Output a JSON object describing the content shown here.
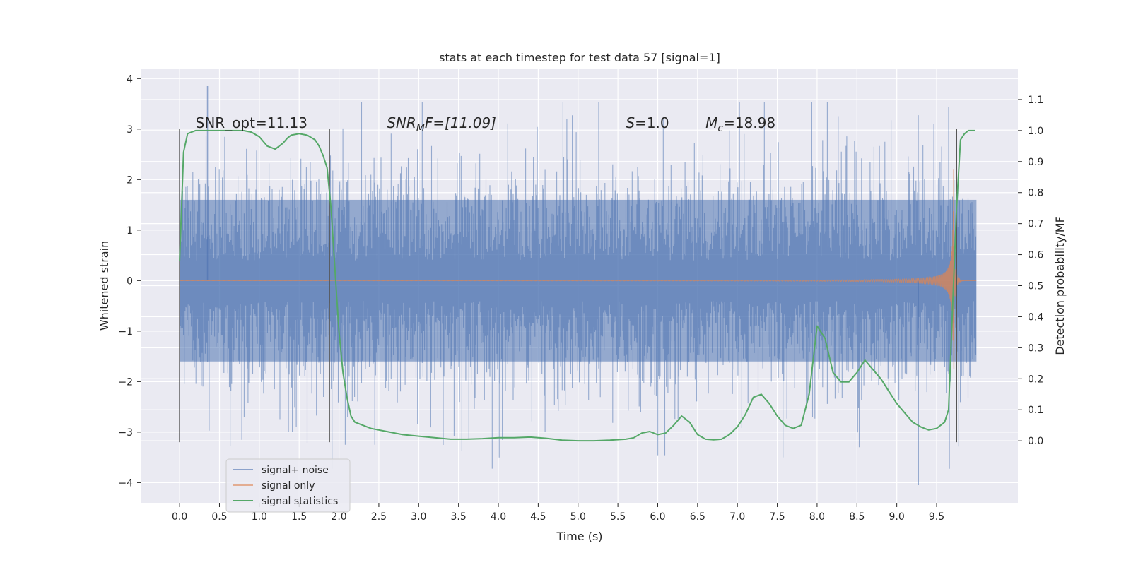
{
  "chart_data": {
    "type": "line",
    "title": "stats at each timestep for test data 57 [signal=1]",
    "xlabel": "Time (s)",
    "ylabel": "Whitened strain",
    "ylabel_right": "Detection probability/MF",
    "xlim": [
      -0.48,
      10.52
    ],
    "ylim": [
      -4.4,
      4.2
    ],
    "ylim_right": [
      -0.2,
      1.2
    ],
    "x_ticks": [
      "0.0",
      "0.5",
      "1.0",
      "1.5",
      "2.0",
      "2.5",
      "3.0",
      "3.5",
      "4.0",
      "4.5",
      "5.0",
      "5.5",
      "6.0",
      "6.5",
      "7.0",
      "7.5",
      "8.0",
      "8.5",
      "9.0",
      "9.5"
    ],
    "x_tick_values": [
      0.0,
      0.5,
      1.0,
      1.5,
      2.0,
      2.5,
      3.0,
      3.5,
      4.0,
      4.5,
      5.0,
      5.5,
      6.0,
      6.5,
      7.0,
      7.5,
      8.0,
      8.5,
      9.0,
      9.5
    ],
    "y_ticks": [
      "−4",
      "−3",
      "−2",
      "−1",
      "0",
      "1",
      "2",
      "3",
      "4"
    ],
    "y_tick_values": [
      -4,
      -3,
      -2,
      -1,
      0,
      1,
      2,
      3,
      4
    ],
    "y_ticks_right": [
      "0.0",
      "0.1",
      "0.2",
      "0.3",
      "0.4",
      "0.5",
      "0.6",
      "0.7",
      "0.8",
      "0.9",
      "1.0",
      "1.1"
    ],
    "y_tick_values_right": [
      0.0,
      0.1,
      0.2,
      0.3,
      0.4,
      0.5,
      0.6,
      0.7,
      0.8,
      0.9,
      1.0,
      1.1
    ],
    "grid": true,
    "legend_position": "lower-left",
    "colors": {
      "background": "#eaeaf2",
      "signal_noise": "#4c72b0",
      "signal_only": "#dd8452",
      "statistics": "#55a868",
      "vline": "#555555"
    },
    "series": [
      {
        "name": "signal+ noise",
        "axis": "left",
        "kind": "noise",
        "x_range": [
          0.0,
          10.0
        ],
        "core_std": 1.0,
        "max_value": 3.85,
        "min_value": -4.05
      },
      {
        "name": "signal only",
        "axis": "left",
        "kind": "chirp",
        "x_range": [
          0.0,
          10.0
        ],
        "merger_time": 9.72,
        "peak_amplitude": 2.2
      },
      {
        "name": "signal statistics",
        "axis": "right",
        "kind": "line",
        "x": [
          0.0,
          0.05,
          0.1,
          0.15,
          0.2,
          0.3,
          0.4,
          0.5,
          0.6,
          0.7,
          0.8,
          0.9,
          1.0,
          1.1,
          1.2,
          1.3,
          1.35,
          1.4,
          1.5,
          1.6,
          1.7,
          1.75,
          1.8,
          1.85,
          1.9,
          1.95,
          2.0,
          2.05,
          2.1,
          2.15,
          2.2,
          2.3,
          2.4,
          2.5,
          2.6,
          2.8,
          3.0,
          3.2,
          3.4,
          3.6,
          3.8,
          4.0,
          4.2,
          4.4,
          4.6,
          4.8,
          5.0,
          5.2,
          5.4,
          5.6,
          5.7,
          5.8,
          5.9,
          6.0,
          6.1,
          6.2,
          6.3,
          6.4,
          6.5,
          6.6,
          6.7,
          6.8,
          6.9,
          7.0,
          7.1,
          7.2,
          7.3,
          7.4,
          7.5,
          7.6,
          7.7,
          7.8,
          7.9,
          8.0,
          8.1,
          8.2,
          8.3,
          8.4,
          8.5,
          8.6,
          8.7,
          8.8,
          8.9,
          9.0,
          9.1,
          9.2,
          9.3,
          9.4,
          9.5,
          9.6,
          9.65,
          9.7,
          9.75,
          9.8,
          9.85,
          9.9,
          9.95,
          9.98
        ],
        "y": [
          0.58,
          0.93,
          0.99,
          0.995,
          1.0,
          1.0,
          1.0,
          1.0,
          1.0,
          1.0,
          1.0,
          0.995,
          0.98,
          0.95,
          0.94,
          0.96,
          0.975,
          0.985,
          0.99,
          0.985,
          0.97,
          0.95,
          0.92,
          0.88,
          0.75,
          0.55,
          0.35,
          0.22,
          0.14,
          0.08,
          0.06,
          0.05,
          0.04,
          0.035,
          0.03,
          0.02,
          0.015,
          0.01,
          0.005,
          0.005,
          0.007,
          0.01,
          0.01,
          0.012,
          0.008,
          0.002,
          0.0,
          0.0,
          0.002,
          0.005,
          0.01,
          0.025,
          0.03,
          0.02,
          0.025,
          0.05,
          0.08,
          0.06,
          0.02,
          0.005,
          0.003,
          0.005,
          0.02,
          0.045,
          0.085,
          0.14,
          0.15,
          0.12,
          0.08,
          0.05,
          0.04,
          0.05,
          0.15,
          0.37,
          0.33,
          0.22,
          0.19,
          0.19,
          0.22,
          0.26,
          0.23,
          0.2,
          0.16,
          0.12,
          0.09,
          0.06,
          0.045,
          0.035,
          0.04,
          0.06,
          0.1,
          0.43,
          0.75,
          0.97,
          0.99,
          1.0,
          1.0,
          1.0
        ]
      }
    ],
    "vlines": [
      0.0,
      1.88,
      9.75
    ],
    "vline_yrange": [
      -3.2,
      3.0
    ],
    "annotations": [
      {
        "text_plain": "SNR_opt=11.13",
        "x": 0.2,
        "y": 3.0
      },
      {
        "text_base": "SNR",
        "text_sub": "M",
        "text_tail": "F=[11.09]",
        "x": 2.6,
        "y": 3.0
      },
      {
        "text_italic": "S",
        "text_tail": "=1.0",
        "x": 5.6,
        "y": 3.0
      },
      {
        "text_base": "M",
        "text_sub": "c",
        "text_tail": "=18.98",
        "x": 6.6,
        "y": 3.0
      }
    ],
    "legend": [
      "signal+ noise",
      "signal only",
      "signal statistics"
    ]
  }
}
